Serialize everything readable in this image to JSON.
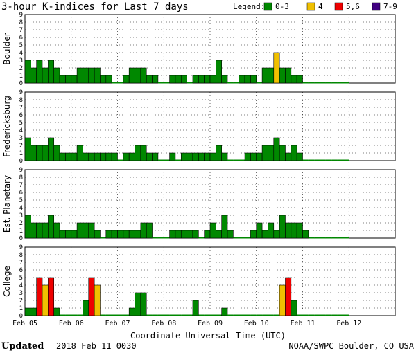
{
  "header": {
    "title": "3-hour K-indices for Last 7 days",
    "legend_label": "Legend:",
    "legend": [
      {
        "label": "0-3",
        "color": "#008800"
      },
      {
        "label": "4",
        "color": "#f0c000"
      },
      {
        "label": "5,6",
        "color": "#ee0000"
      },
      {
        "label": "7-9",
        "color": "#400080"
      }
    ]
  },
  "footer": {
    "updated_label": "Updated",
    "updated_value": "2018 Feb 11 0030",
    "credit": "NOAA/SWPC Boulder, CO USA"
  },
  "chart_data": {
    "type": "bar",
    "title": "3-hour K-indices for Last 7 days",
    "xlabel": "Coordinate Universal Time (UTC)",
    "x_ticks": [
      "Feb 05",
      "Feb 06",
      "Feb 07",
      "Feb 08",
      "Feb 09",
      "Feb 10",
      "Feb 11",
      "Feb 12"
    ],
    "y_ticks": [
      "0",
      "1",
      "2",
      "3",
      "4",
      "5",
      "6",
      "7",
      "8",
      "9"
    ],
    "ylim": [
      0,
      9
    ],
    "intervals_per_day": 8,
    "days": 7,
    "color_scale": [
      {
        "range": "0-3",
        "color": "#008800"
      },
      {
        "range": "4",
        "color": "#f0c000"
      },
      {
        "range": "5,6",
        "color": "#ee0000"
      },
      {
        "range": "7-9",
        "color": "#400080"
      }
    ],
    "series": [
      {
        "name": "Boulder",
        "values": [
          3,
          2,
          3,
          2,
          3,
          2,
          1,
          1,
          1,
          2,
          2,
          2,
          2,
          1,
          1,
          0,
          0,
          1,
          2,
          2,
          2,
          1,
          1,
          0,
          0,
          1,
          1,
          1,
          0,
          1,
          1,
          1,
          1,
          3,
          1,
          0,
          0,
          1,
          1,
          1,
          0,
          2,
          2,
          4,
          2,
          2,
          1,
          1,
          0,
          0,
          0,
          0,
          0,
          0,
          0,
          0
        ]
      },
      {
        "name": "Fredericksburg",
        "values": [
          3,
          2,
          2,
          2,
          3,
          2,
          1,
          1,
          1,
          2,
          1,
          1,
          1,
          1,
          1,
          1,
          0,
          1,
          1,
          2,
          2,
          1,
          1,
          0,
          0,
          1,
          0,
          1,
          1,
          1,
          1,
          1,
          1,
          2,
          1,
          0,
          0,
          0,
          1,
          1,
          1,
          2,
          2,
          3,
          2,
          1,
          2,
          1,
          0,
          0,
          0,
          0,
          0,
          0,
          0,
          0
        ]
      },
      {
        "name": "Est. Planetary",
        "values": [
          3,
          2,
          2,
          2,
          3,
          2,
          1,
          1,
          1,
          2,
          2,
          2,
          1,
          0,
          1,
          1,
          1,
          1,
          1,
          1,
          2,
          2,
          0,
          0,
          0,
          1,
          1,
          1,
          1,
          1,
          0,
          1,
          2,
          1,
          3,
          1,
          0,
          0,
          0,
          1,
          2,
          1,
          2,
          1,
          3,
          2,
          2,
          2,
          1,
          0,
          0,
          0,
          0,
          0,
          0,
          0
        ]
      },
      {
        "name": "College",
        "values": [
          1,
          1,
          5,
          4,
          5,
          1,
          0,
          0,
          0,
          0,
          2,
          5,
          4,
          0,
          0,
          0,
          0,
          0,
          1,
          3,
          3,
          0,
          0,
          0,
          0,
          0,
          0,
          0,
          0,
          2,
          0,
          0,
          0,
          0,
          1,
          0,
          0,
          0,
          0,
          0,
          0,
          0,
          0,
          0,
          4,
          5,
          2,
          0,
          0,
          0,
          0,
          0,
          0,
          0,
          0,
          0
        ]
      }
    ]
  }
}
